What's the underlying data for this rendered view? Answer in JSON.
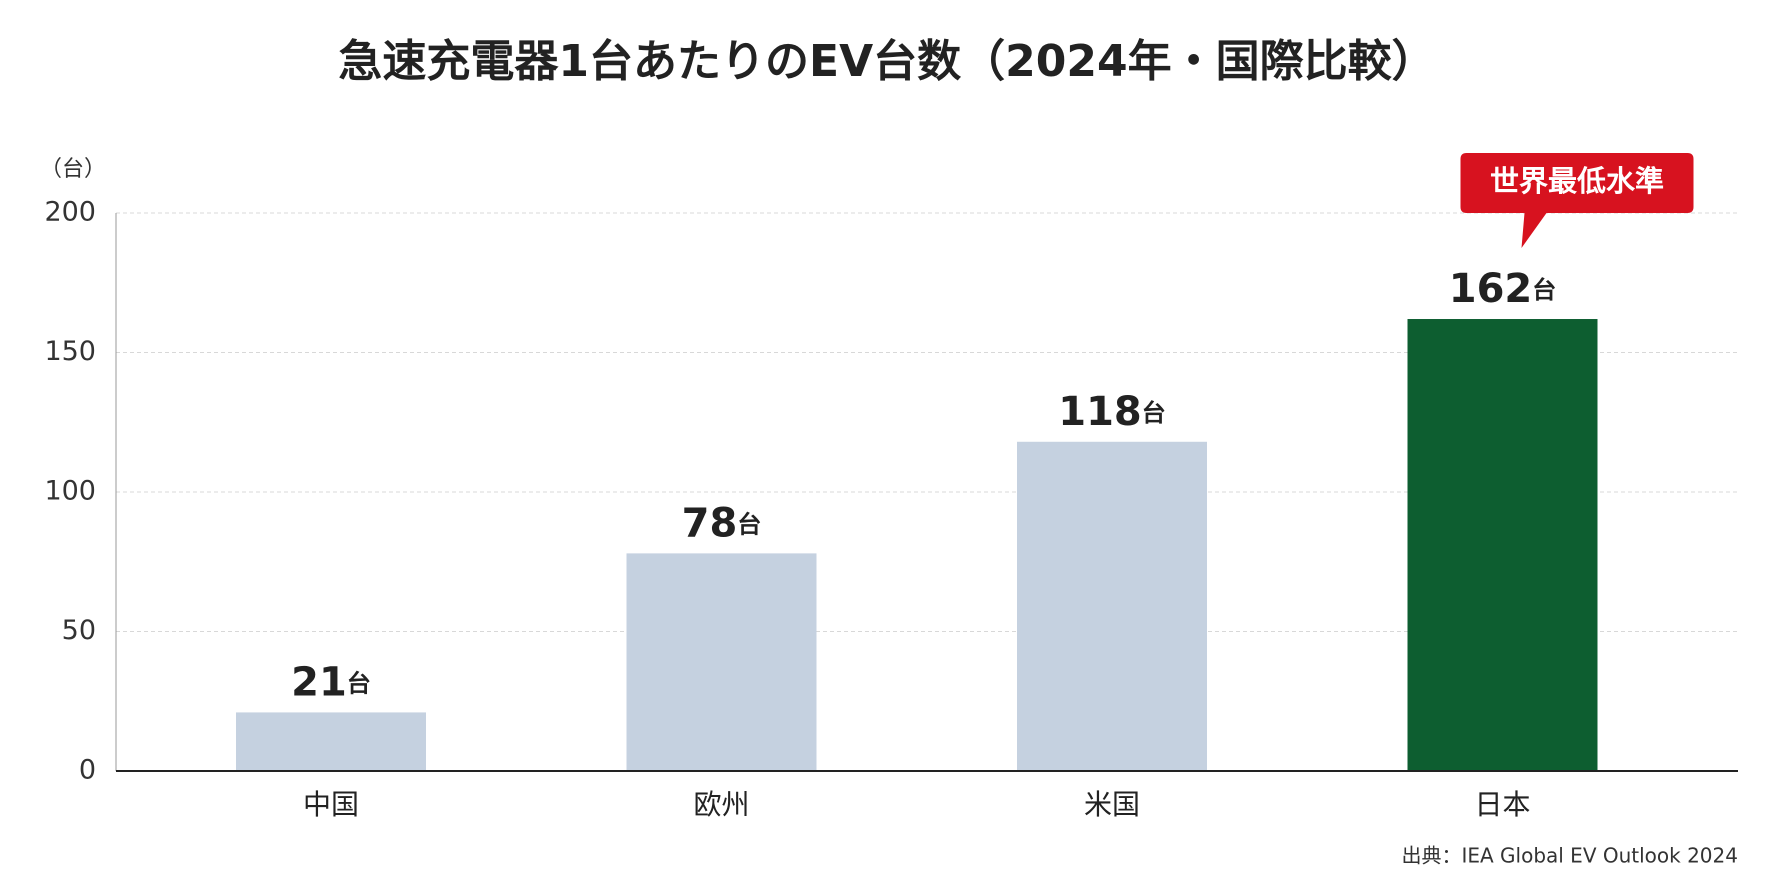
{
  "chart_data": {
    "type": "bar",
    "title": "急速充電器1台あたりのEV台数（2024年・国際比較）",
    "y_unit_label": "（台）",
    "categories": [
      "中国",
      "欧州",
      "米国",
      "日本"
    ],
    "values": [
      21,
      78,
      118,
      162
    ],
    "value_unit": "台",
    "colors": [
      "#c5d1e0",
      "#c5d1e0",
      "#c5d1e0",
      "#0d5e30"
    ],
    "ylim": [
      0,
      200
    ],
    "yticks": [
      0,
      50,
      100,
      150,
      200
    ],
    "grid": true,
    "annotation": "世界最低水準",
    "annotation_color": "#d7121f",
    "source": "出典：IEA Global EV Outlook 2024"
  }
}
